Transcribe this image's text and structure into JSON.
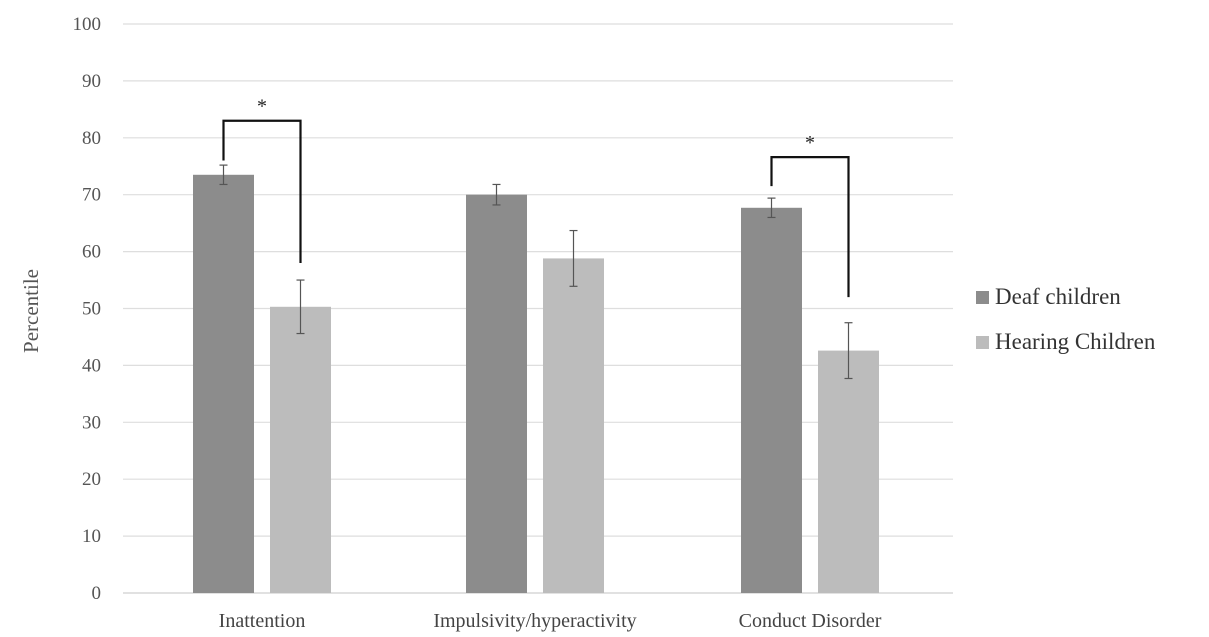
{
  "chart_data": {
    "type": "bar",
    "title": "",
    "xlabel": "",
    "ylabel": "Percentile",
    "ylim": [
      0,
      100
    ],
    "yticks": [
      0,
      10,
      20,
      30,
      40,
      50,
      60,
      70,
      80,
      90,
      100
    ],
    "grid": true,
    "legend_position": "right",
    "categories": [
      "Inattention",
      "Impulsivity/hyperactivity",
      "Conduct Disorder"
    ],
    "series": [
      {
        "name": "Deaf children",
        "color": "#8c8c8c",
        "values": [
          73.5,
          70.0,
          67.7
        ],
        "error": [
          1.7,
          1.8,
          1.7
        ]
      },
      {
        "name": "Hearing Children",
        "color": "#bcbcbc",
        "values": [
          50.3,
          58.8,
          42.6
        ],
        "error": [
          4.7,
          4.9,
          4.9
        ]
      }
    ],
    "significance": [
      {
        "category": "Inattention",
        "label": "*",
        "bracket_top": 83.0,
        "left_end": 76.0,
        "right_end": 58.0
      },
      {
        "category": "Conduct Disorder",
        "label": "*",
        "bracket_top": 76.6,
        "left_end": 71.5,
        "right_end": 52.0
      }
    ]
  }
}
